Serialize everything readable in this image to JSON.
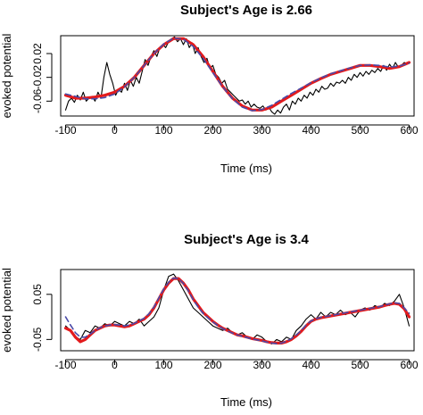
{
  "chart_data": [
    {
      "type": "line",
      "title": "Subject's Age is 2.66",
      "xlabel": "Time (ms)",
      "ylabel": "evoked potential",
      "xlim": [
        -110,
        610
      ],
      "ylim": [
        -0.085,
        0.05
      ],
      "xticks": [
        "-100",
        "0",
        "100",
        "200",
        "300",
        "400",
        "500",
        "600"
      ],
      "yticks": [
        "-0.06",
        "-0.02",
        "0.02"
      ],
      "grid": false,
      "series": [
        {
          "color": "#000000",
          "style": "solid",
          "x": [
            -100,
            -94,
            -88,
            -82,
            -76,
            -70,
            -64,
            -58,
            -52,
            -46,
            -40,
            -34,
            -28,
            -22,
            -16,
            -10,
            -4,
            2,
            8,
            14,
            20,
            26,
            32,
            38,
            44,
            50,
            56,
            62,
            68,
            74,
            80,
            86,
            92,
            98,
            104,
            110,
            116,
            122,
            128,
            134,
            140,
            146,
            152,
            158,
            164,
            170,
            176,
            182,
            188,
            194,
            200,
            206,
            212,
            218,
            224,
            230,
            236,
            242,
            248,
            254,
            260,
            266,
            272,
            278,
            284,
            290,
            296,
            302,
            308,
            314,
            320,
            326,
            332,
            338,
            344,
            350,
            356,
            362,
            368,
            374,
            380,
            386,
            392,
            398,
            404,
            410,
            416,
            422,
            428,
            434,
            440,
            446,
            452,
            458,
            464,
            470,
            476,
            482,
            488,
            494,
            500,
            506,
            512,
            518,
            524,
            530,
            536,
            542,
            548,
            554,
            560,
            566,
            572,
            578,
            584,
            590,
            596,
            600
          ],
          "y": [
            -0.075,
            -0.06,
            -0.055,
            -0.062,
            -0.05,
            -0.058,
            -0.045,
            -0.06,
            -0.055,
            -0.052,
            -0.06,
            -0.045,
            -0.055,
            -0.02,
            0.005,
            -0.015,
            -0.03,
            -0.05,
            -0.04,
            -0.045,
            -0.03,
            -0.042,
            -0.025,
            -0.035,
            -0.02,
            -0.03,
            -0.01,
            0.01,
            0.0,
            0.015,
            0.025,
            0.015,
            0.03,
            0.035,
            0.03,
            0.04,
            0.045,
            0.048,
            0.04,
            0.045,
            0.035,
            0.045,
            0.03,
            0.038,
            0.02,
            0.03,
            0.015,
            0.005,
            0.012,
            -0.005,
            0.0,
            -0.015,
            -0.02,
            -0.03,
            -0.025,
            -0.04,
            -0.045,
            -0.05,
            -0.055,
            -0.06,
            -0.058,
            -0.065,
            -0.06,
            -0.07,
            -0.065,
            -0.07,
            -0.072,
            -0.068,
            -0.075,
            -0.07,
            -0.078,
            -0.082,
            -0.075,
            -0.08,
            -0.07,
            -0.065,
            -0.075,
            -0.06,
            -0.065,
            -0.055,
            -0.06,
            -0.05,
            -0.055,
            -0.045,
            -0.05,
            -0.04,
            -0.045,
            -0.035,
            -0.04,
            -0.038,
            -0.03,
            -0.035,
            -0.028,
            -0.03,
            -0.025,
            -0.03,
            -0.02,
            -0.025,
            -0.015,
            -0.02,
            -0.012,
            -0.018,
            -0.01,
            -0.015,
            -0.008,
            -0.012,
            -0.005,
            -0.01,
            0.0,
            -0.008,
            0.002,
            -0.005,
            0.005,
            -0.003,
            0.0,
            0.005,
            0.003,
            0.005
          ]
        },
        {
          "color": "#e31a1c",
          "style": "solid",
          "x": [
            -100,
            -80,
            -60,
            -40,
            -20,
            0,
            20,
            40,
            60,
            80,
            100,
            120,
            140,
            160,
            180,
            200,
            220,
            240,
            260,
            280,
            300,
            320,
            340,
            360,
            380,
            400,
            420,
            440,
            460,
            480,
            500,
            520,
            540,
            560,
            580,
            600
          ],
          "y": [
            -0.05,
            -0.055,
            -0.055,
            -0.053,
            -0.05,
            -0.045,
            -0.035,
            -0.02,
            0.0,
            0.02,
            0.035,
            0.045,
            0.045,
            0.035,
            0.015,
            -0.01,
            -0.035,
            -0.055,
            -0.068,
            -0.075,
            -0.075,
            -0.07,
            -0.06,
            -0.05,
            -0.04,
            -0.03,
            -0.022,
            -0.015,
            -0.01,
            -0.005,
            0.0,
            0.0,
            -0.002,
            -0.005,
            -0.002,
            0.005
          ]
        },
        {
          "color": "#4a4aa8",
          "style": "dashed",
          "x": [
            -100,
            -80,
            -60,
            -40,
            -20,
            0,
            20,
            40,
            60,
            80,
            100,
            120,
            140,
            160,
            180,
            200,
            220,
            240,
            260,
            280,
            300,
            320,
            340,
            360,
            380,
            400,
            420,
            440,
            460,
            480,
            500,
            520,
            540,
            560,
            580,
            600
          ],
          "y": [
            -0.048,
            -0.052,
            -0.056,
            -0.056,
            -0.054,
            -0.048,
            -0.036,
            -0.02,
            0.0,
            0.02,
            0.036,
            0.046,
            0.044,
            0.032,
            0.012,
            -0.012,
            -0.036,
            -0.056,
            -0.07,
            -0.076,
            -0.074,
            -0.067,
            -0.057,
            -0.047,
            -0.038,
            -0.029,
            -0.021,
            -0.014,
            -0.009,
            -0.004,
            0.0,
            0.001,
            0.0,
            -0.003,
            -0.001,
            0.004
          ]
        }
      ]
    },
    {
      "type": "line",
      "title": "Subject's Age is 3.4",
      "xlabel": "Time (ms)",
      "ylabel": "evoked potential",
      "xlim": [
        -110,
        610
      ],
      "ylim": [
        -0.075,
        0.105
      ],
      "xticks": [
        "-100",
        "0",
        "100",
        "200",
        "300",
        "400",
        "500",
        "600"
      ],
      "yticks": [
        "-0.05",
        "0.05"
      ],
      "grid": false,
      "series": [
        {
          "color": "#000000",
          "style": "solid",
          "x": [
            -100,
            -90,
            -80,
            -70,
            -60,
            -50,
            -40,
            -30,
            -20,
            -10,
            0,
            10,
            20,
            30,
            40,
            50,
            60,
            70,
            80,
            90,
            100,
            110,
            120,
            130,
            140,
            150,
            160,
            170,
            180,
            190,
            200,
            210,
            220,
            230,
            240,
            250,
            260,
            270,
            280,
            290,
            300,
            310,
            320,
            330,
            340,
            350,
            360,
            370,
            380,
            390,
            400,
            410,
            420,
            430,
            440,
            450,
            460,
            470,
            480,
            490,
            500,
            510,
            520,
            530,
            540,
            550,
            560,
            570,
            580,
            590,
            600
          ],
          "y": [
            -0.02,
            -0.03,
            -0.045,
            -0.05,
            -0.03,
            -0.035,
            -0.02,
            -0.025,
            -0.015,
            -0.02,
            -0.01,
            -0.015,
            -0.02,
            -0.01,
            -0.015,
            -0.005,
            -0.02,
            -0.01,
            0.0,
            0.02,
            0.06,
            0.09,
            0.095,
            0.08,
            0.06,
            0.04,
            0.02,
            0.01,
            0.0,
            -0.01,
            -0.02,
            -0.025,
            -0.03,
            -0.025,
            -0.035,
            -0.04,
            -0.035,
            -0.045,
            -0.05,
            -0.04,
            -0.045,
            -0.055,
            -0.06,
            -0.05,
            -0.055,
            -0.045,
            -0.05,
            -0.03,
            -0.02,
            -0.005,
            0.005,
            -0.005,
            0.01,
            0.0,
            0.01,
            0.005,
            0.015,
            0.005,
            0.01,
            0.0,
            0.015,
            0.02,
            0.015,
            0.025,
            0.02,
            0.03,
            0.025,
            0.035,
            0.05,
            0.02,
            -0.02
          ]
        },
        {
          "color": "#e31a1c",
          "style": "solid",
          "x": [
            -100,
            -90,
            -80,
            -70,
            -60,
            -50,
            -40,
            -30,
            -20,
            -10,
            0,
            10,
            20,
            30,
            40,
            50,
            60,
            70,
            80,
            90,
            100,
            110,
            120,
            130,
            140,
            150,
            160,
            170,
            180,
            190,
            200,
            210,
            220,
            230,
            240,
            250,
            260,
            270,
            280,
            290,
            300,
            310,
            320,
            330,
            340,
            350,
            360,
            370,
            380,
            390,
            400,
            410,
            420,
            430,
            440,
            450,
            460,
            470,
            480,
            490,
            500,
            510,
            520,
            530,
            540,
            550,
            560,
            570,
            580,
            590,
            600
          ],
          "y": [
            -0.025,
            -0.03,
            -0.045,
            -0.055,
            -0.05,
            -0.04,
            -0.03,
            -0.025,
            -0.02,
            -0.018,
            -0.018,
            -0.02,
            -0.022,
            -0.02,
            -0.015,
            -0.01,
            -0.005,
            0.005,
            0.02,
            0.04,
            0.06,
            0.075,
            0.085,
            0.085,
            0.075,
            0.06,
            0.04,
            0.025,
            0.01,
            0.0,
            -0.01,
            -0.018,
            -0.025,
            -0.03,
            -0.035,
            -0.04,
            -0.042,
            -0.045,
            -0.048,
            -0.05,
            -0.052,
            -0.055,
            -0.057,
            -0.058,
            -0.058,
            -0.055,
            -0.05,
            -0.042,
            -0.032,
            -0.02,
            -0.01,
            -0.005,
            -0.002,
            0.0,
            0.002,
            0.004,
            0.006,
            0.008,
            0.01,
            0.012,
            0.014,
            0.016,
            0.018,
            0.02,
            0.022,
            0.025,
            0.028,
            0.03,
            0.028,
            0.018,
            0.0
          ]
        },
        {
          "color": "#4a4aa8",
          "style": "dashed",
          "x": [
            -100,
            -90,
            -80,
            -70,
            -60,
            -50,
            -40,
            -30,
            -20,
            -10,
            0,
            10,
            20,
            30,
            40,
            50,
            60,
            70,
            80,
            90,
            100,
            110,
            120,
            130,
            140,
            150,
            160,
            170,
            180,
            190,
            200,
            210,
            220,
            230,
            240,
            250,
            260,
            270,
            280,
            290,
            300,
            310,
            320,
            330,
            340,
            350,
            360,
            370,
            380,
            390,
            400,
            410,
            420,
            430,
            440,
            450,
            460,
            470,
            480,
            490,
            500,
            510,
            520,
            530,
            540,
            550,
            560,
            570,
            580,
            590,
            600
          ],
          "y": [
            0.0,
            -0.018,
            -0.035,
            -0.045,
            -0.045,
            -0.038,
            -0.03,
            -0.024,
            -0.02,
            -0.018,
            -0.017,
            -0.018,
            -0.02,
            -0.018,
            -0.014,
            -0.009,
            -0.003,
            0.007,
            0.022,
            0.042,
            0.062,
            0.077,
            0.086,
            0.085,
            0.074,
            0.058,
            0.038,
            0.022,
            0.008,
            -0.002,
            -0.011,
            -0.019,
            -0.026,
            -0.031,
            -0.036,
            -0.04,
            -0.043,
            -0.046,
            -0.049,
            -0.051,
            -0.053,
            -0.056,
            -0.058,
            -0.059,
            -0.058,
            -0.054,
            -0.048,
            -0.04,
            -0.03,
            -0.018,
            -0.009,
            -0.004,
            -0.001,
            0.001,
            0.003,
            0.005,
            0.007,
            0.009,
            0.011,
            0.013,
            0.015,
            0.017,
            0.019,
            0.021,
            0.023,
            0.026,
            0.029,
            0.031,
            0.03,
            0.02,
            0.008
          ]
        }
      ]
    }
  ]
}
